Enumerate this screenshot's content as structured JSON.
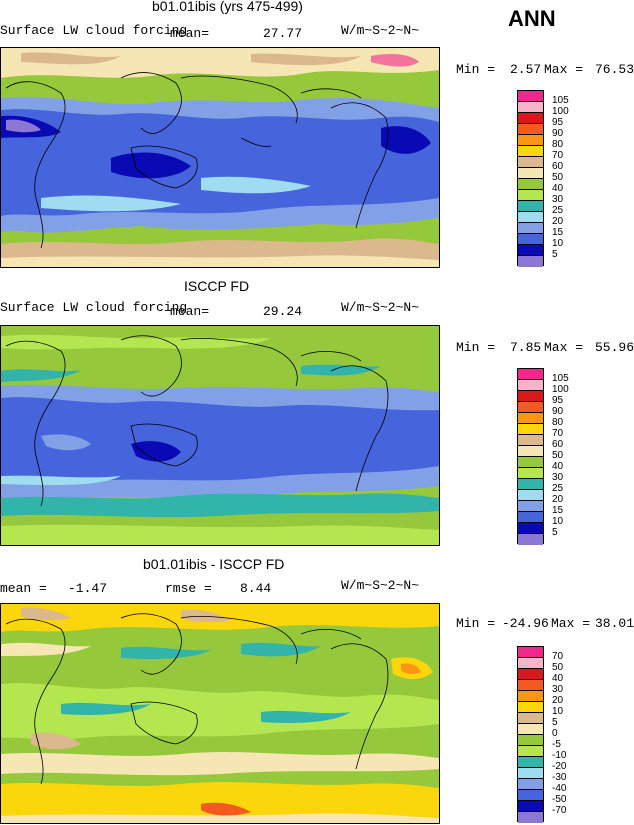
{
  "season": "ANN",
  "colors": {
    "c_pink": "#f0288c",
    "c_ltpink": "#f5b4c8",
    "c_red": "#d7191c",
    "c_dkorange": "#f25a1e",
    "c_orange": "#fa9614",
    "c_yellow": "#fad60a",
    "c_tan": "#dcb98c",
    "c_cream": "#f5e6b4",
    "c_green": "#96c83c",
    "c_ltgreen": "#b4e650",
    "c_teal": "#32b4aa",
    "c_ltblue": "#a0dcf0",
    "c_midblue": "#82a0e6",
    "c_blue": "#4664dc",
    "c_dkblue": "#0a0ab4",
    "c_purple": "#8c78d2"
  },
  "chart_data": [
    {
      "type": "heatmap",
      "title": "b01.01ibis (yrs 475-499)",
      "field": "Surface LW cloud forcing",
      "units": "W/m~S~2~N~",
      "mean_label": "mean=",
      "mean": "27.77",
      "min_label": "Min =",
      "min": "2.57",
      "max_label": "Max =",
      "max": "76.53",
      "levels": [
        "105",
        "100",
        "95",
        "90",
        "80",
        "70",
        "60",
        "50",
        "40",
        "30",
        "25",
        "20",
        "15",
        "10",
        "5"
      ],
      "level_colors": [
        "#f0288c",
        "#f5b4c8",
        "#d7191c",
        "#f25a1e",
        "#fa9614",
        "#fad60a",
        "#dcb98c",
        "#f5e6b4",
        "#96c83c",
        "#b4e650",
        "#32b4aa",
        "#a0dcf0",
        "#82a0e6",
        "#4664dc",
        "#0a0ab4",
        "#8c78d2"
      ]
    },
    {
      "type": "heatmap",
      "title": "ISCCP FD",
      "field": "Surface LW cloud forcing",
      "units": "W/m~S~2~N~",
      "mean_label": "mean=",
      "mean": "29.24",
      "min_label": "Min =",
      "min": "7.85",
      "max_label": "Max =",
      "max": "55.96",
      "levels": [
        "105",
        "100",
        "95",
        "90",
        "80",
        "70",
        "60",
        "50",
        "40",
        "30",
        "25",
        "20",
        "15",
        "10",
        "5"
      ],
      "level_colors": [
        "#f0288c",
        "#f5b4c8",
        "#d7191c",
        "#f25a1e",
        "#fa9614",
        "#fad60a",
        "#dcb98c",
        "#f5e6b4",
        "#96c83c",
        "#b4e650",
        "#32b4aa",
        "#a0dcf0",
        "#82a0e6",
        "#4664dc",
        "#0a0ab4",
        "#8c78d2"
      ]
    },
    {
      "type": "heatmap",
      "title": "b01.01ibis - ISCCP FD",
      "units": "W/m~S~2~N~",
      "mean_label": "mean =",
      "mean": "-1.47",
      "rmse_label": "rmse =",
      "rmse": "8.44",
      "min_label": "Min =",
      "min": "-24.96",
      "max_label": "Max =",
      "max": "38.01",
      "levels": [
        "70",
        "50",
        "40",
        "30",
        "20",
        "10",
        "5",
        "0",
        "-5",
        "-10",
        "-20",
        "-30",
        "-40",
        "-50",
        "-70"
      ],
      "level_colors": [
        "#f0288c",
        "#f5b4c8",
        "#d7191c",
        "#f25a1e",
        "#fa9614",
        "#fad60a",
        "#dcb98c",
        "#f5e6b4",
        "#96c83c",
        "#b4e650",
        "#32b4aa",
        "#a0dcf0",
        "#82a0e6",
        "#4664dc",
        "#0a0ab4",
        "#8c78d2"
      ]
    }
  ]
}
